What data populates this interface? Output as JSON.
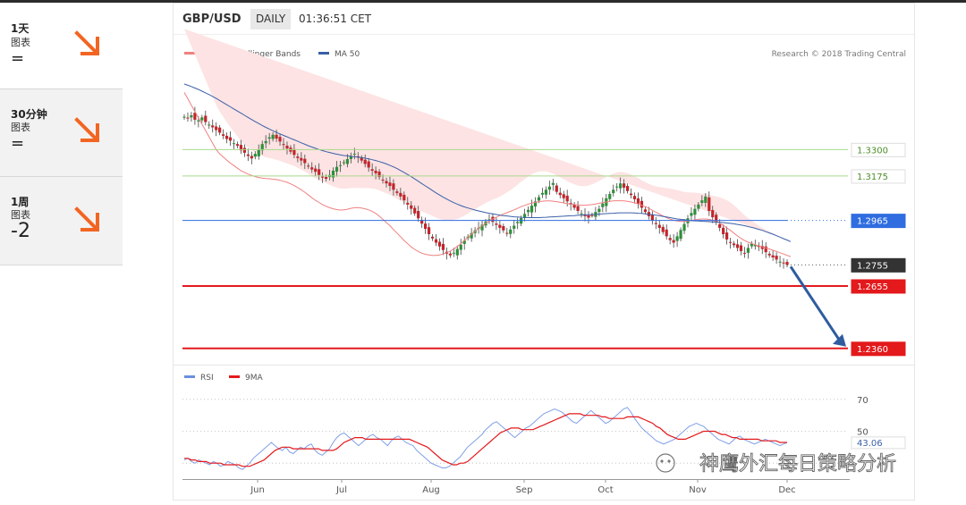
{
  "timeframes": [
    {
      "label": "1天",
      "sub": "图表",
      "signal": "=",
      "direction": "down"
    },
    {
      "label": "30分钟",
      "sub": "图表",
      "signal": "=",
      "direction": "down"
    },
    {
      "label": "1周",
      "sub": "图表",
      "signal": "-2",
      "direction": "down"
    }
  ],
  "header": {
    "pair": "GBP/USD",
    "period": "DAILY",
    "time": "01:36:51 CET"
  },
  "colors": {
    "accent_arrow": "#f26522",
    "ma20": "#f08080",
    "ma50": "#3a5fa8",
    "band": "#fde3e3",
    "candle_up": "#2f8f3a",
    "candle_down": "#c0252b",
    "support": "#e3191c",
    "pivot": "#2f6de0",
    "resistance": "#a8d88a",
    "last_price": "#333333"
  },
  "chart_data": [
    {
      "type": "candlestick",
      "legend": [
        "MA 20 + Bollinger Bands",
        "MA 50"
      ],
      "credit": "Research © 2018 Trading Central",
      "x_ticks": [
        "Jun",
        "Jul",
        "Aug",
        "Sep",
        "Oct",
        "Nov",
        "Dec"
      ],
      "ylim": [
        1.23,
        1.38
      ],
      "levels": [
        {
          "value": 1.33,
          "label": "1.3300",
          "kind": "resistance"
        },
        {
          "value": 1.3175,
          "label": "1.3175",
          "kind": "resistance"
        },
        {
          "value": 1.2965,
          "label": "1.2965",
          "kind": "pivot"
        },
        {
          "value": 1.2755,
          "label": "1.2755",
          "kind": "last"
        },
        {
          "value": 1.2655,
          "label": "1.2655",
          "kind": "support"
        },
        {
          "value": 1.236,
          "label": "1.2360",
          "kind": "support"
        }
      ],
      "close": [
        1.3455,
        1.3448,
        1.3462,
        1.3441,
        1.3438,
        1.3452,
        1.343,
        1.3418,
        1.3405,
        1.3392,
        1.338,
        1.3365,
        1.335,
        1.3342,
        1.333,
        1.3318,
        1.3296,
        1.3285,
        1.327,
        1.3258,
        1.328,
        1.33,
        1.3326,
        1.334,
        1.3358,
        1.337,
        1.3352,
        1.3338,
        1.3322,
        1.3305,
        1.329,
        1.3275,
        1.326,
        1.3248,
        1.3236,
        1.322,
        1.3206,
        1.3195,
        1.318,
        1.317,
        1.3162,
        1.318,
        1.32,
        1.3218,
        1.3226,
        1.324,
        1.3255,
        1.327,
        1.328,
        1.3265,
        1.3248,
        1.3232,
        1.3215,
        1.32,
        1.3188,
        1.317,
        1.3155,
        1.314,
        1.3128,
        1.311,
        1.3095,
        1.3078,
        1.306,
        1.304,
        1.302,
        1.2998,
        1.2975,
        1.295,
        1.2925,
        1.29,
        1.288,
        1.286,
        1.2842,
        1.2825,
        1.2808,
        1.28,
        1.2812,
        1.283,
        1.285,
        1.287,
        1.2888,
        1.2905,
        1.2918,
        1.293,
        1.2945,
        1.296,
        1.297,
        1.2958,
        1.2944,
        1.293,
        1.2918,
        1.2905,
        1.2922,
        1.294,
        1.2958,
        1.2976,
        1.2996,
        1.3015,
        1.3035,
        1.3055,
        1.3075,
        1.3095,
        1.311,
        1.3125,
        1.3142,
        1.31,
        1.3085,
        1.307,
        1.3055,
        1.304,
        1.3025,
        1.301,
        1.2998,
        1.2985,
        1.2978,
        1.299,
        1.3005,
        1.302,
        1.3045,
        1.307,
        1.309,
        1.311,
        1.3125,
        1.314,
        1.312,
        1.3104,
        1.3085,
        1.3065,
        1.3045,
        1.3025,
        1.3005,
        1.2985,
        1.2965,
        1.2948,
        1.293,
        1.291,
        1.289,
        1.2872,
        1.286,
        1.289,
        1.292,
        1.2948,
        1.2975,
        1.3,
        1.302,
        1.304,
        1.306,
        1.3078,
        1.301,
        1.298,
        1.2955,
        1.293,
        1.29,
        1.2875,
        1.286,
        1.2848,
        1.2835,
        1.282,
        1.2812,
        1.2835,
        1.2855,
        1.285,
        1.284,
        1.283,
        1.2815,
        1.28,
        1.279,
        1.278,
        1.277,
        1.2765,
        1.2755
      ],
      "ma20": [
        1.357,
        1.354,
        1.351,
        1.348,
        1.345,
        1.342,
        1.339,
        1.336,
        1.333,
        1.33,
        1.328,
        1.3265,
        1.325,
        1.3236,
        1.3224,
        1.3212,
        1.32,
        1.3192,
        1.3184,
        1.3178,
        1.3172,
        1.3168,
        1.3165,
        1.3163,
        1.3162,
        1.316,
        1.3158,
        1.3155,
        1.315,
        1.3145,
        1.3138,
        1.313,
        1.312,
        1.311,
        1.3098,
        1.3085,
        1.3072,
        1.306,
        1.305,
        1.304,
        1.3032,
        1.3025,
        1.302,
        1.3016,
        1.3014,
        1.3015,
        1.3018,
        1.3022,
        1.3025,
        1.3026,
        1.3024,
        1.302,
        1.3015,
        1.3008,
        1.2998,
        1.2985,
        1.297,
        1.2955,
        1.294,
        1.2922,
        1.2905,
        1.2888,
        1.287,
        1.2855,
        1.284,
        1.2828,
        1.2818,
        1.281,
        1.2805,
        1.2802,
        1.28,
        1.28,
        1.2802,
        1.2806,
        1.2812,
        1.282,
        1.283,
        1.2842,
        1.2855,
        1.287,
        1.2885,
        1.29,
        1.2914,
        1.2928,
        1.294,
        1.2952,
        1.2962,
        1.2972,
        1.298,
        1.2988,
        1.2995,
        1.3002,
        1.3008,
        1.3015,
        1.3022,
        1.303,
        1.3036,
        1.3042,
        1.3047,
        1.3051,
        1.3054,
        1.3056,
        1.3057,
        1.3057,
        1.3056,
        1.3054,
        1.3051,
        1.3048,
        1.3045,
        1.3042,
        1.304,
        1.3038,
        1.3037,
        1.3037,
        1.3038,
        1.304,
        1.3043,
        1.3046,
        1.3049,
        1.3052,
        1.3055,
        1.3057,
        1.3058,
        1.3058,
        1.3057,
        1.3055,
        1.3052,
        1.3048,
        1.3043,
        1.3037,
        1.303,
        1.3022,
        1.3013,
        1.3004,
        1.2995,
        1.2986,
        1.2978,
        1.2971,
        1.2966,
        1.2962,
        1.296,
        1.296,
        1.2962,
        1.2965,
        1.2968,
        1.297,
        1.2972,
        1.2972,
        1.297,
        1.2966,
        1.296,
        1.2952,
        1.2942,
        1.293,
        1.2918,
        1.2905,
        1.2892,
        1.288,
        1.287,
        1.2862,
        1.2856,
        1.285,
        1.2845,
        1.284,
        1.2835,
        1.283,
        1.2824,
        1.2818,
        1.2812,
        1.2806,
        1.28,
        1.2794
      ],
      "band_width": [
        0.03,
        0.029,
        0.028,
        0.027,
        0.026,
        0.025,
        0.024,
        0.023,
        0.022,
        0.021,
        0.02,
        0.019,
        0.018,
        0.017,
        0.016,
        0.015,
        0.014,
        0.013,
        0.0125,
        0.012,
        0.0115,
        0.011,
        0.0105,
        0.01,
        0.0098,
        0.0096,
        0.0094,
        0.0092,
        0.009,
        0.009,
        0.009,
        0.0092,
        0.0094,
        0.0096,
        0.0098,
        0.01,
        0.0102,
        0.0104,
        0.0106,
        0.0108,
        0.011,
        0.0108,
        0.0106,
        0.0104,
        0.0102,
        0.01,
        0.0098,
        0.0096,
        0.0094,
        0.0092,
        0.0094,
        0.0098,
        0.0102,
        0.0108,
        0.0115,
        0.0122,
        0.013,
        0.0138,
        0.0146,
        0.0154,
        0.0162,
        0.017,
        0.0178,
        0.0186,
        0.0192,
        0.0196,
        0.0198,
        0.0198,
        0.0196,
        0.0192,
        0.0186,
        0.0178,
        0.017,
        0.0162,
        0.0154,
        0.0146,
        0.0138,
        0.013,
        0.0124,
        0.0118,
        0.0112,
        0.0108,
        0.0104,
        0.01,
        0.0098,
        0.0096,
        0.0094,
        0.0092,
        0.009,
        0.009,
        0.0092,
        0.0096,
        0.01,
        0.0106,
        0.0112,
        0.0118,
        0.0124,
        0.013,
        0.0136,
        0.014,
        0.0142,
        0.0142,
        0.014,
        0.0136,
        0.013,
        0.0124,
        0.0118,
        0.0112,
        0.0106,
        0.01,
        0.0096,
        0.0092,
        0.009,
        0.009,
        0.0092,
        0.0096,
        0.01,
        0.0106,
        0.0112,
        0.0118,
        0.0124,
        0.013,
        0.0134,
        0.0136,
        0.0136,
        0.0134,
        0.013,
        0.0126,
        0.0122,
        0.0118,
        0.0116,
        0.0116,
        0.0118,
        0.0122,
        0.0128,
        0.0134,
        0.014,
        0.0144,
        0.0146,
        0.0146,
        0.0144,
        0.014,
        0.0136,
        0.0132,
        0.0128,
        0.0124,
        0.012,
        0.0118,
        0.0116,
        0.0116,
        0.0118,
        0.0122,
        0.0126,
        0.013,
        0.0132,
        0.0132,
        0.013,
        0.0126,
        0.012,
        0.0114,
        0.0108,
        0.0102,
        0.0096,
        0.009,
        0.0086,
        0.0082,
        0.008,
        0.0078,
        0.0076
      ],
      "ma50": [
        1.361,
        1.3604,
        1.3598,
        1.3591,
        1.3584,
        1.3576,
        1.3568,
        1.356,
        1.3551,
        1.3542,
        1.3532,
        1.3522,
        1.3512,
        1.3502,
        1.3492,
        1.3482,
        1.3472,
        1.3462,
        1.3452,
        1.3442,
        1.3432,
        1.3423,
        1.3414,
        1.3405,
        1.3397,
        1.3389,
        1.3381,
        1.3374,
        1.3367,
        1.336,
        1.3353,
        1.3346,
        1.3339,
        1.3332,
        1.3325,
        1.3318,
        1.3312,
        1.3306,
        1.33,
        1.3295,
        1.329,
        1.3286,
        1.3282,
        1.3278,
        1.3275,
        1.3272,
        1.327,
        1.3268,
        1.3266,
        1.3264,
        1.3262,
        1.3259,
        1.3256,
        1.3252,
        1.3248,
        1.3243,
        1.3238,
        1.3232,
        1.3225,
        1.3218,
        1.321,
        1.3201,
        1.3192,
        1.3182,
        1.3172,
        1.3161,
        1.315,
        1.3139,
        1.3128,
        1.3117,
        1.3106,
        1.3095,
        1.3085,
        1.3075,
        1.3066,
        1.3057,
        1.3049,
        1.3042,
        1.3035,
        1.3029,
        1.3024,
        1.3019,
        1.3014,
        1.301,
        1.3006,
        1.3002,
        1.2999,
        1.2996,
        1.2993,
        1.299,
        1.2988,
        1.2986,
        1.2984,
        1.2982,
        1.2981,
        1.298,
        1.2979,
        1.2978,
        1.2978,
        1.2978,
        1.2978,
        1.2979,
        1.298,
        1.2981,
        1.2982,
        1.2983,
        1.2984,
        1.2985,
        1.2986,
        1.2987,
        1.2988,
        1.2989,
        1.299,
        1.2991,
        1.2992,
        1.2993,
        1.2994,
        1.2995,
        1.2996,
        1.2997,
        1.2998,
        1.2999,
        1.3,
        1.3001,
        1.3001,
        1.3001,
        1.3001,
        1.3,
        1.2999,
        1.2998,
        1.2996,
        1.2994,
        1.2992,
        1.299,
        1.2987,
        1.2984,
        1.2981,
        1.2978,
        1.2975,
        1.2972,
        1.297,
        1.2968,
        1.2966,
        1.2964,
        1.2963,
        1.2962,
        1.2961,
        1.296,
        1.2959,
        1.2958,
        1.2957,
        1.2956,
        1.2955,
        1.2953,
        1.2951,
        1.2949,
        1.2946,
        1.2943,
        1.294,
        1.2936,
        1.2932,
        1.2928,
        1.2923,
        1.2918,
        1.2912,
        1.2906,
        1.29,
        1.2893,
        1.2886,
        1.2879,
        1.2872,
        1.2865
      ]
    },
    {
      "type": "line",
      "legend": [
        "RSI",
        "9MA"
      ],
      "y_ticks": [
        {
          "value": 70,
          "label": "70"
        },
        {
          "value": 50,
          "label": "50"
        }
      ],
      "last_value": {
        "value": 43.06,
        "label": "43.06"
      },
      "ylim": [
        20,
        80
      ],
      "rsi": [
        32,
        33,
        31,
        30,
        32,
        31,
        30,
        29,
        31,
        30,
        28,
        29,
        31,
        30,
        29,
        27,
        26,
        28,
        30,
        33,
        35,
        37,
        39,
        41,
        43,
        41,
        39,
        38,
        40,
        37,
        36,
        38,
        40,
        39,
        41,
        42,
        38,
        36,
        35,
        37,
        39,
        43,
        46,
        48,
        49,
        47,
        45,
        43,
        41,
        43,
        45,
        47,
        48,
        46,
        45,
        43,
        41,
        44,
        46,
        47,
        45,
        43,
        42,
        41,
        38,
        36,
        34,
        32,
        30,
        29,
        28,
        27,
        27,
        28,
        30,
        32,
        34,
        37,
        40,
        42,
        44,
        46,
        48,
        51,
        53,
        55,
        56,
        54,
        52,
        50,
        48,
        46,
        48,
        50,
        52,
        53,
        55,
        57,
        59,
        61,
        62,
        63,
        64,
        63,
        62,
        60,
        58,
        56,
        55,
        57,
        59,
        61,
        63,
        61,
        59,
        57,
        55,
        56,
        58,
        60,
        62,
        64,
        65,
        62,
        58,
        55,
        52,
        50,
        48,
        46,
        44,
        43,
        42,
        43,
        44,
        45,
        47,
        49,
        51,
        53,
        54,
        55,
        54,
        53,
        51,
        49,
        47,
        45,
        44,
        43,
        42,
        44,
        46,
        47,
        45,
        44,
        43,
        42,
        43,
        44,
        45,
        44,
        43,
        42,
        41,
        42,
        43
      ],
      "ma9": [
        33,
        33,
        32,
        32,
        31,
        31,
        31,
        30,
        30,
        30,
        30,
        29,
        29,
        29,
        29,
        29,
        28,
        28,
        28,
        29,
        30,
        31,
        32,
        34,
        36,
        38,
        39,
        40,
        40,
        40,
        39,
        39,
        39,
        39,
        39,
        39,
        39,
        39,
        38,
        38,
        38,
        38,
        39,
        41,
        43,
        44,
        45,
        46,
        46,
        46,
        45,
        45,
        45,
        45,
        45,
        45,
        45,
        45,
        45,
        45,
        45,
        45,
        45,
        44,
        43,
        42,
        41,
        40,
        38,
        36,
        34,
        32,
        31,
        30,
        29,
        29,
        30,
        30,
        31,
        33,
        35,
        37,
        39,
        41,
        43,
        45,
        47,
        49,
        50,
        51,
        52,
        52,
        52,
        51,
        51,
        51,
        51,
        52,
        53,
        54,
        55,
        56,
        57,
        58,
        59,
        60,
        61,
        61,
        61,
        61,
        60,
        60,
        60,
        60,
        60,
        59,
        59,
        58,
        58,
        58,
        58,
        58,
        59,
        59,
        59,
        59,
        58,
        57,
        56,
        55,
        53,
        52,
        50,
        48,
        47,
        46,
        45,
        45,
        45,
        46,
        47,
        48,
        49,
        50,
        50,
        50,
        50,
        49,
        48,
        48,
        47,
        46,
        46,
        45,
        45,
        45,
        45,
        45,
        45,
        44,
        44,
        44,
        44,
        44,
        43,
        43,
        43
      ]
    }
  ],
  "watermark": "神鹰外汇每日策略分析"
}
